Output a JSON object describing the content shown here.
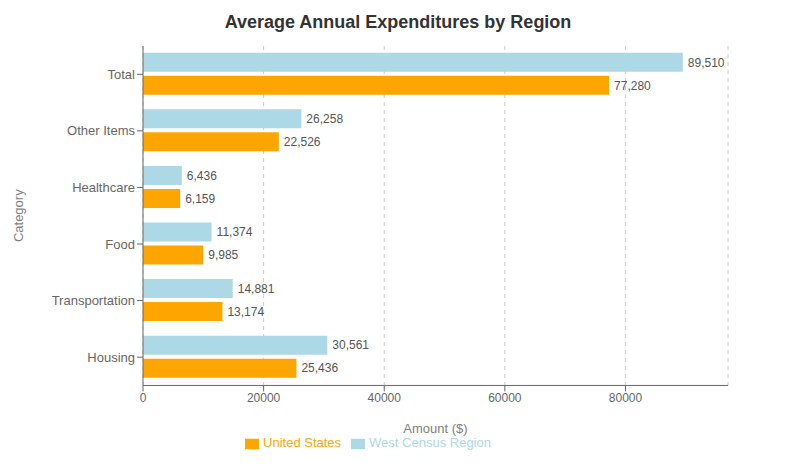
{
  "chart_data": {
    "type": "bar",
    "orientation": "horizontal",
    "title": "Average Annual Expenditures by Region",
    "xlabel": "Amount ($)",
    "ylabel": "Category",
    "categories": [
      "Housing",
      "Transportation",
      "Food",
      "Healthcare",
      "Other Items",
      "Total"
    ],
    "series": [
      {
        "name": "West Census Region",
        "color": "#ADD8E6",
        "values": [
          30561,
          14881,
          11374,
          6436,
          26258,
          89510
        ],
        "value_labels": [
          "30,561",
          "14,881",
          "11,374",
          "6,436",
          "26,258",
          "89,510"
        ]
      },
      {
        "name": "United States",
        "color": "#FFA500",
        "values": [
          25436,
          13174,
          9985,
          6159,
          22526,
          77280
        ],
        "value_labels": [
          "25,436",
          "13,174",
          "9,985",
          "6,159",
          "22,526",
          "77,280"
        ]
      }
    ],
    "xlim": [
      0,
      97000
    ],
    "xticks": [
      0,
      20000,
      40000,
      60000,
      80000
    ],
    "grid": true,
    "legend": "bottom",
    "data_labels": true
  }
}
